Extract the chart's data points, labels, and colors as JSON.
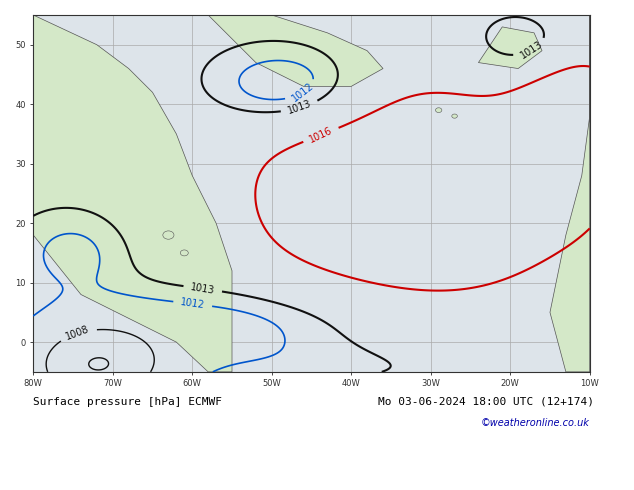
{
  "title_bottom_left": "Surface pressure [hPa] ECMWF",
  "title_bottom_right": "Mo 03-06-2024 18:00 UTC (12+174)",
  "copyright": "©weatheronline.co.uk",
  "ocean_color": "#dde4ea",
  "land_color": "#d4e8c8",
  "grid_color": "#aaaaaa",
  "figsize": [
    6.34,
    4.9
  ],
  "dpi": 100,
  "xlim": [
    -80,
    -10
  ],
  "ylim": [
    -5,
    55
  ],
  "black_levels": [
    1004,
    1008,
    1013
  ],
  "red_levels": [
    1016
  ],
  "blue_levels": [
    1012
  ],
  "black_color": "#111111",
  "red_color": "#cc0000",
  "blue_color": "#0055cc",
  "label_fontsize": 7,
  "bottom_fontsize": 8,
  "copyright_fontsize": 7
}
